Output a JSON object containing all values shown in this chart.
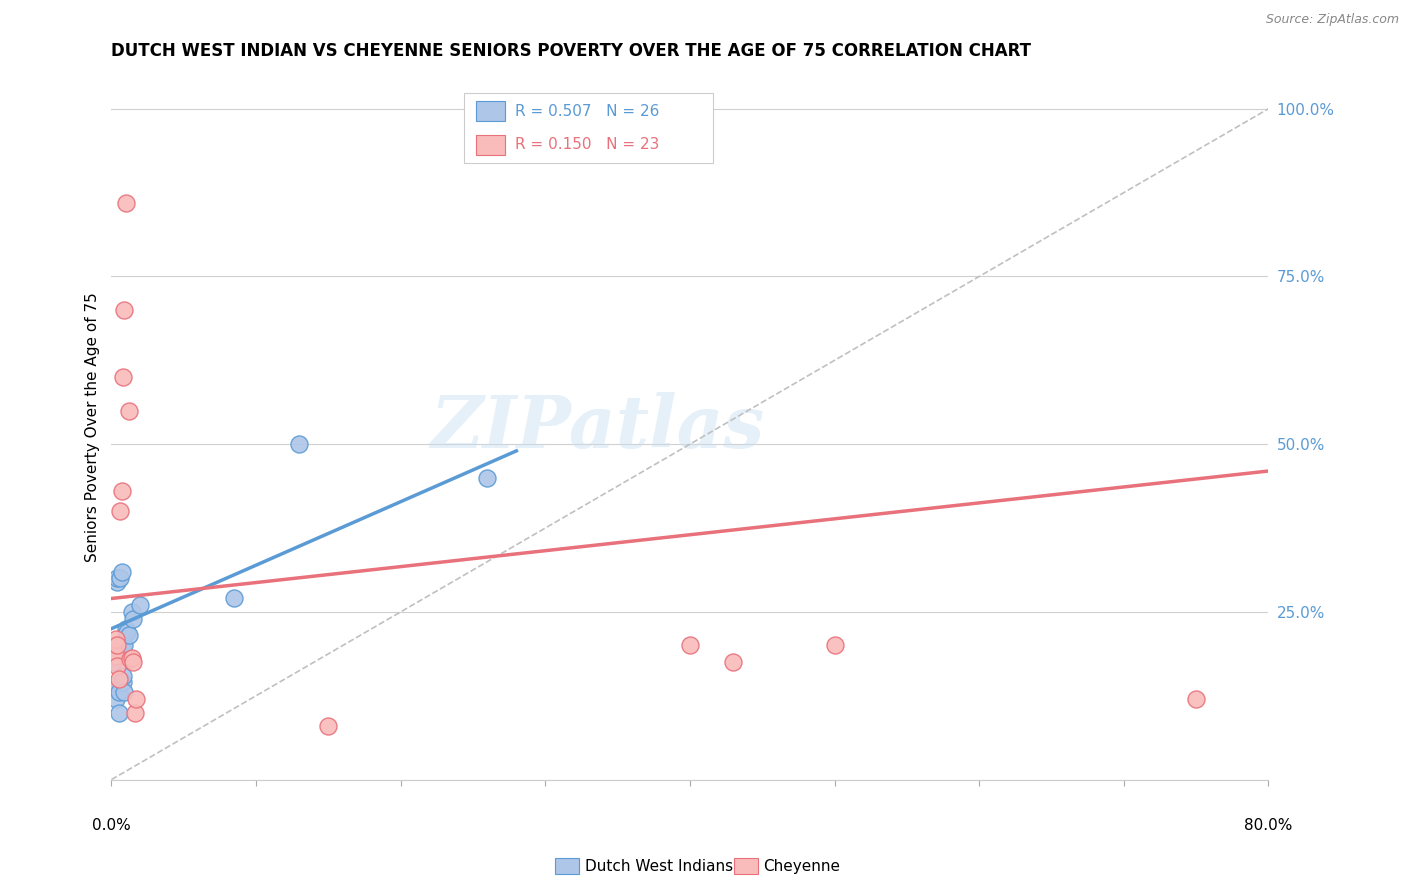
{
  "title": "DUTCH WEST INDIAN VS CHEYENNE SENIORS POVERTY OVER THE AGE OF 75 CORRELATION CHART",
  "source": "Source: ZipAtlas.com",
  "ylabel": "Seniors Poverty Over the Age of 75",
  "yticks": [
    0.0,
    0.25,
    0.5,
    0.75,
    1.0
  ],
  "ytick_labels": [
    "",
    "25.0%",
    "50.0%",
    "75.0%",
    "100.0%"
  ],
  "xlim": [
    0.0,
    0.8
  ],
  "ylim": [
    0.0,
    1.05
  ],
  "watermark": "ZIPatlas",
  "legend_blue_r": "R = 0.507",
  "legend_blue_n": "N = 26",
  "legend_pink_r": "R = 0.150",
  "legend_pink_n": "N = 23",
  "legend_label_blue": "Dutch West Indians",
  "legend_label_pink": "Cheyenne",
  "blue_fill": "#aec6e8",
  "blue_edge": "#5b9bd5",
  "pink_fill": "#f9bcbb",
  "pink_edge": "#e8717b",
  "axis_color": "#5b9bd5",
  "grid_color": "#d0d0d0",
  "title_fontsize": 12,
  "blue_scatter": [
    [
      0.001,
      0.175
    ],
    [
      0.0015,
      0.185
    ],
    [
      0.002,
      0.14
    ],
    [
      0.003,
      0.12
    ],
    [
      0.004,
      0.295
    ],
    [
      0.004,
      0.3
    ],
    [
      0.005,
      0.1
    ],
    [
      0.005,
      0.13
    ],
    [
      0.006,
      0.2
    ],
    [
      0.006,
      0.3
    ],
    [
      0.007,
      0.31
    ],
    [
      0.007,
      0.2
    ],
    [
      0.008,
      0.145
    ],
    [
      0.008,
      0.155
    ],
    [
      0.009,
      0.13
    ],
    [
      0.009,
      0.2
    ],
    [
      0.01,
      0.22
    ],
    [
      0.01,
      0.225
    ],
    [
      0.011,
      0.22
    ],
    [
      0.012,
      0.215
    ],
    [
      0.014,
      0.25
    ],
    [
      0.015,
      0.24
    ],
    [
      0.02,
      0.26
    ],
    [
      0.085,
      0.27
    ],
    [
      0.13,
      0.5
    ],
    [
      0.26,
      0.45
    ]
  ],
  "pink_scatter": [
    [
      0.001,
      0.19
    ],
    [
      0.002,
      0.2
    ],
    [
      0.003,
      0.185
    ],
    [
      0.003,
      0.21
    ],
    [
      0.004,
      0.2
    ],
    [
      0.004,
      0.17
    ],
    [
      0.005,
      0.15
    ],
    [
      0.006,
      0.4
    ],
    [
      0.007,
      0.43
    ],
    [
      0.008,
      0.6
    ],
    [
      0.009,
      0.7
    ],
    [
      0.01,
      0.86
    ],
    [
      0.012,
      0.55
    ],
    [
      0.013,
      0.18
    ],
    [
      0.014,
      0.182
    ],
    [
      0.015,
      0.175
    ],
    [
      0.016,
      0.1
    ],
    [
      0.017,
      0.12
    ],
    [
      0.15,
      0.08
    ],
    [
      0.4,
      0.2
    ],
    [
      0.43,
      0.175
    ],
    [
      0.5,
      0.2
    ],
    [
      0.75,
      0.12
    ]
  ],
  "blue_line_x": [
    0.0,
    0.28
  ],
  "blue_line_y": [
    0.225,
    0.49
  ],
  "pink_line_x": [
    0.0,
    0.8
  ],
  "pink_line_y": [
    0.27,
    0.46
  ],
  "diag_line_x": [
    0.0,
    0.8
  ],
  "diag_line_y": [
    0.0,
    1.0
  ]
}
